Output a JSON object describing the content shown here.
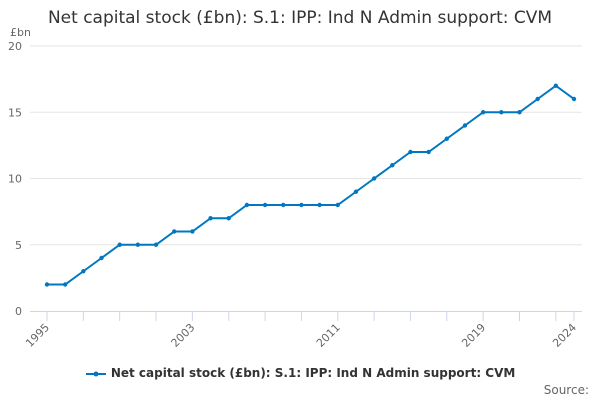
{
  "chart_data": {
    "type": "line",
    "title": "Net capital stock (£bn): S.1: IPP: Ind N Admin support: CVM",
    "ylabel": "£bn",
    "xlabel": "",
    "ylim": [
      0,
      20
    ],
    "yticks": [
      0,
      5,
      10,
      15,
      20
    ],
    "xtick_labels": [
      "1995",
      "2003",
      "2011",
      "2019",
      "2024"
    ],
    "x": [
      1995,
      1996,
      1997,
      1998,
      1999,
      2000,
      2001,
      2002,
      2003,
      2004,
      2005,
      2006,
      2007,
      2008,
      2009,
      2010,
      2011,
      2012,
      2013,
      2014,
      2015,
      2016,
      2017,
      2018,
      2019,
      2020,
      2021,
      2022,
      2023,
      2024
    ],
    "series": [
      {
        "name": "Net capital stock (£bn): S.1: IPP: Ind N Admin support: CVM",
        "values": [
          2,
          2,
          3,
          4,
          5,
          5,
          5,
          6,
          6,
          7,
          7,
          8,
          8,
          8,
          8,
          8,
          8,
          9,
          10,
          11,
          12,
          12,
          13,
          14,
          15,
          15,
          15,
          16,
          17,
          16
        ]
      }
    ],
    "legend_position": "bottom",
    "grid": true,
    "color": "#0077c0"
  },
  "source_label": "Source:"
}
